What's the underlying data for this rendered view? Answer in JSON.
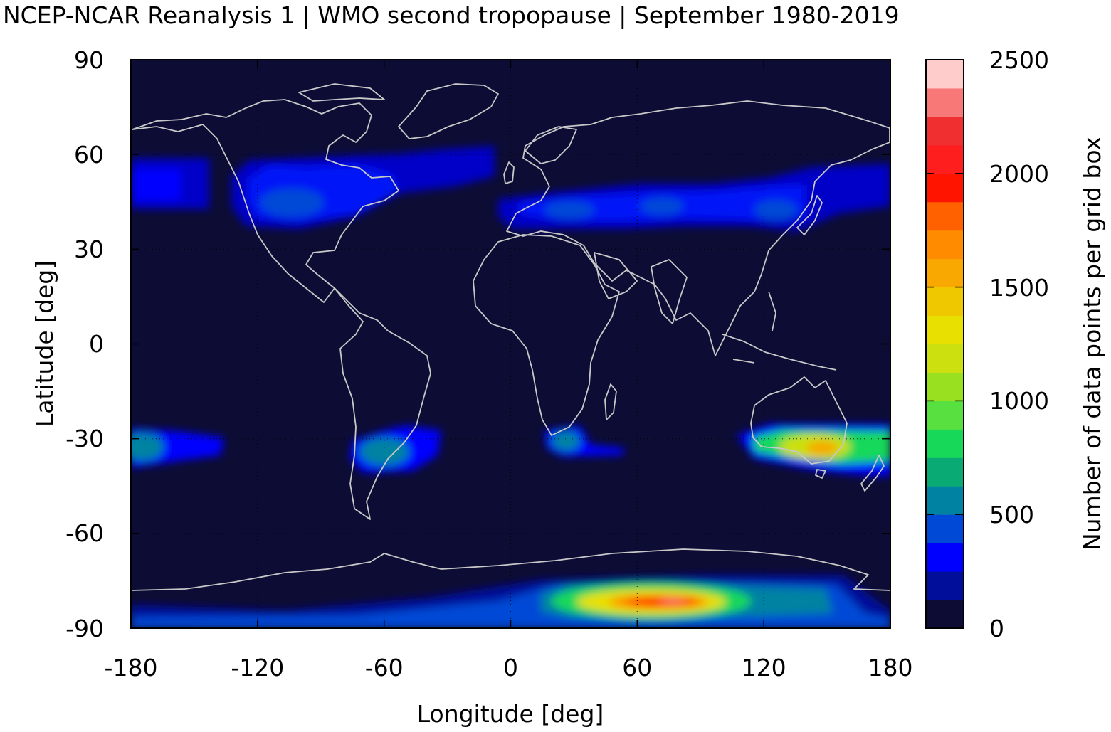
{
  "title": "NCEP-NCAR Reanalysis 1 | WMO second tropopause | September 1980-2019",
  "chart_data": {
    "type": "heatmap",
    "xlabel": "Longitude [deg]",
    "ylabel": "Latitude [deg]",
    "colorbar_label": "Number of data points per grid box",
    "xlim": [
      -180,
      180
    ],
    "ylim": [
      -90,
      90
    ],
    "x_ticks": [
      "-180",
      "-120",
      "-60",
      "0",
      "60",
      "120",
      "180"
    ],
    "y_ticks": [
      "90",
      "60",
      "30",
      "0",
      "-30",
      "-60",
      "-90"
    ],
    "colorbar_ticks": [
      "2500",
      "2000",
      "1500",
      "1000",
      "500",
      "0"
    ],
    "clim": [
      0,
      2500
    ],
    "grid": true,
    "background_color": "#0c0c34",
    "coastline_color": "#c8c8c8",
    "colorbar_colors": [
      "#0c0c34",
      "#000e9a",
      "#0000ff",
      "#0048d6",
      "#0082a2",
      "#0aaa74",
      "#18d85a",
      "#58e040",
      "#98e020",
      "#cce010",
      "#e8e000",
      "#f0c800",
      "#f8a800",
      "#ff8c00",
      "#ff6000",
      "#ff1400",
      "#ff1e1e",
      "#f03030",
      "#f87878",
      "#ffcccc"
    ],
    "regions": [
      {
        "name": "north-pacific-band",
        "lon": [
          -180,
          -145
        ],
        "lat": [
          42,
          60
        ],
        "value": 300
      },
      {
        "name": "north-america-band",
        "lon": [
          -125,
          -60
        ],
        "lat": [
          36,
          61
        ],
        "value": 320
      },
      {
        "name": "north-atlantic-band",
        "lon": [
          -60,
          -15
        ],
        "lat": [
          49,
          64
        ],
        "value": 250
      },
      {
        "name": "eurasia-band",
        "lon": [
          -5,
          180
        ],
        "lat": [
          38,
          53
        ],
        "value": 300
      },
      {
        "name": "south-pacific-band",
        "lon": [
          -180,
          -140
        ],
        "lat": [
          -38,
          -25
        ],
        "value": 500
      },
      {
        "name": "south-america-band",
        "lon": [
          -78,
          -35
        ],
        "lat": [
          -40,
          -26
        ],
        "value": 480
      },
      {
        "name": "south-africa-band",
        "lon": [
          15,
          55
        ],
        "lat": [
          -35,
          -26
        ],
        "value": 450
      },
      {
        "name": "australia-band",
        "lon": [
          110,
          180
        ],
        "lat": [
          -42,
          -25
        ],
        "value": 1300
      },
      {
        "name": "antarctic-band",
        "lon": [
          -180,
          180
        ],
        "lat": [
          -90,
          -72
        ],
        "value": 2000
      }
    ]
  }
}
